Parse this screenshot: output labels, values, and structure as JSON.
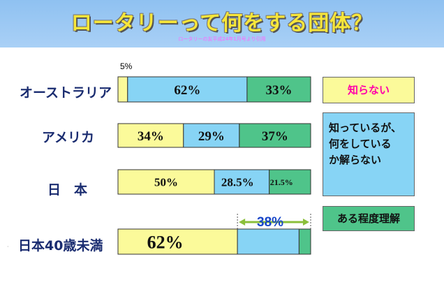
{
  "header": {
    "title": "ロータリーって何をする団体？",
    "subtitle": "ロータリーの友平成24年1月号より引用"
  },
  "colors": {
    "unknown": "#fbfa9a",
    "heard_only": "#87d4f5",
    "understand": "#4fc48a",
    "header_bg": "#9ec8f4",
    "bracket_arrow": "#8bbf3a",
    "bracket_text": "#1846c8"
  },
  "chart_data": {
    "type": "bar",
    "orientation": "horizontal",
    "stacked": true,
    "normalized": true,
    "categories": [
      "オーストラリア",
      "アメリカ",
      "日　本",
      "日本40歳未満"
    ],
    "series": [
      {
        "name": "知らない",
        "values": [
          5,
          34,
          50,
          62
        ],
        "labels": [
          "5%",
          "34%",
          "50%",
          "62%"
        ]
      },
      {
        "name": "知っているが、何をしているか解らない",
        "values": [
          62,
          29,
          28.5,
          32
        ],
        "labels": [
          "62%",
          "29%",
          "28.5%",
          ""
        ]
      },
      {
        "name": "ある程度理解",
        "values": [
          33,
          37,
          21.5,
          6
        ],
        "labels": [
          "33%",
          "37%",
          "21.5%",
          ""
        ]
      }
    ],
    "xlim": [
      0,
      100
    ],
    "annotations": [
      {
        "category": "日本40歳未満",
        "span": "知っているが、何をしているか解らない + ある程度理解",
        "text": "38%"
      }
    ],
    "legend": {
      "placement": "right",
      "items": [
        "知らない",
        "知っているが、何をしているか解らない",
        "ある程度理解"
      ]
    }
  },
  "legend_text": {
    "unknown": "知らない",
    "heard_lines": [
      "知っているが、",
      "何をしている",
      "か解らない"
    ],
    "understand": "ある程度理解"
  }
}
